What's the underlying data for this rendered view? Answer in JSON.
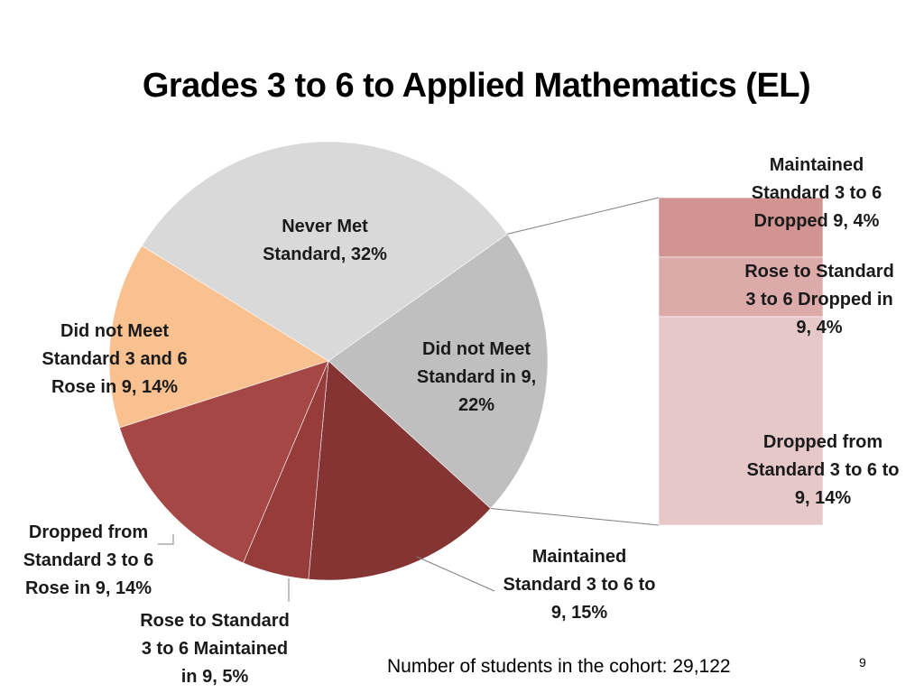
{
  "chart_data": {
    "type": "bar-of-pie",
    "title": "Grades 3 to 6 to Applied Mathematics (EL)",
    "pie": [
      {
        "name": "Never Met Standard",
        "value": 32,
        "label": [
          "Never Met",
          "Standard, 32%"
        ],
        "color": "#d9d9d9"
      },
      {
        "name": "Did not Meet Standard in 9",
        "value": 22,
        "label": [
          "Did not Meet",
          "Standard in 9,",
          "22%"
        ],
        "color": "#bfbfbf",
        "exploded_to_bar": true
      },
      {
        "name": "Maintained Standard 3 to 6 to 9",
        "value": 15,
        "label": [
          "Maintained",
          "Standard 3 to 6 to",
          "9, 15%"
        ],
        "color": "#853434"
      },
      {
        "name": "Rose to Standard 3 to 6 Maintained in 9",
        "value": 5,
        "label": [
          "Rose to Standard",
          "3 to 6 Maintained",
          "in 9, 5%"
        ],
        "color": "#963c3b"
      },
      {
        "name": "Dropped from Standard 3 to 6 Rose in 9",
        "value": 14,
        "label": [
          "Dropped from",
          "Standard 3 to 6",
          "Rose in 9, 14%"
        ],
        "color": "#a54745"
      },
      {
        "name": "Did not Meet Standard 3 and 6 Rose in 9",
        "value": 14,
        "label": [
          "Did not Meet",
          "Standard 3 and 6",
          "Rose in 9, 14%"
        ],
        "color": "#f9c090"
      }
    ],
    "bar": [
      {
        "name": "Maintained Standard 3 to 6 Dropped 9",
        "value": 4,
        "label": [
          "Maintained",
          "Standard 3 to 6",
          "Dropped 9, 4%"
        ],
        "color": "#d19492"
      },
      {
        "name": "Rose to Standard 3 to 6 Dropped in 9",
        "value": 4,
        "label": [
          "Rose to Standard",
          "3 to 6 Dropped in",
          "9, 4%"
        ],
        "color": "#dcaaa9"
      },
      {
        "name": "Dropped from Standard 3 to 6 to 9",
        "value": 14,
        "label": [
          "Dropped from",
          "Standard 3 to 6 to",
          "9, 14%"
        ],
        "color": "#e6c8c9"
      }
    ]
  },
  "footer": "Number of students in the cohort: 29,122",
  "page_number": "9"
}
